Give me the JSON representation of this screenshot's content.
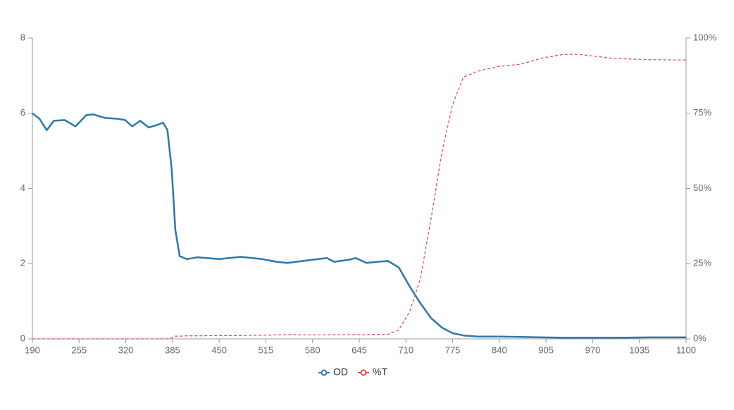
{
  "chart_data": {
    "type": "line",
    "x": [
      190,
      200,
      210,
      220,
      235,
      250,
      265,
      275,
      290,
      310,
      319,
      329,
      340,
      352,
      365,
      372,
      378,
      384,
      389,
      395,
      405,
      420,
      450,
      480,
      510,
      530,
      545,
      570,
      600,
      610,
      630,
      640,
      655,
      670,
      685,
      700,
      715,
      730,
      745,
      760,
      775,
      790,
      810,
      840,
      870,
      900,
      930,
      950,
      1000,
      1050,
      1100
    ],
    "series": [
      {
        "name": "OD",
        "color": "#2a78ae",
        "axis": "y",
        "values": [
          6.0,
          5.85,
          5.55,
          5.8,
          5.82,
          5.65,
          5.95,
          5.97,
          5.88,
          5.85,
          5.82,
          5.65,
          5.8,
          5.62,
          5.7,
          5.75,
          5.55,
          4.5,
          2.9,
          2.2,
          2.12,
          2.17,
          2.12,
          2.18,
          2.12,
          2.05,
          2.02,
          2.08,
          2.15,
          2.05,
          2.1,
          2.15,
          2.02,
          2.05,
          2.07,
          1.9,
          1.4,
          0.95,
          0.55,
          0.3,
          0.15,
          0.09,
          0.06,
          0.06,
          0.05,
          0.04,
          0.03,
          0.03,
          0.03,
          0.04,
          0.04
        ]
      },
      {
        "name": "%T",
        "color": "#d9534f",
        "axis": "y2",
        "values": [
          0,
          0,
          0,
          0,
          0,
          0,
          0,
          0,
          0,
          0,
          0,
          0,
          0,
          0,
          0,
          0,
          0,
          0.3,
          0.9,
          0.9,
          1,
          1,
          1.1,
          1.1,
          1.2,
          1.3,
          1.4,
          1.3,
          1.3,
          1.4,
          1.4,
          1.4,
          1.4,
          1.5,
          1.5,
          3,
          9,
          20,
          40,
          62,
          78,
          87,
          89,
          90.6,
          91.3,
          93.4,
          94.6,
          94.6,
          93.2,
          92.8,
          92.7
        ]
      }
    ],
    "xlim": [
      190,
      1100
    ],
    "xticks": [
      190,
      255,
      320,
      385,
      450,
      515,
      580,
      645,
      710,
      775,
      840,
      905,
      970,
      1035,
      1100
    ],
    "ylim": [
      0,
      8
    ],
    "yticks": [
      0,
      2,
      4,
      6,
      8
    ],
    "y2lim": [
      0,
      100
    ],
    "y2ticks": [
      {
        "value": 0,
        "label": "0%"
      },
      {
        "value": 25,
        "label": "25%"
      },
      {
        "value": 50,
        "label": "50%"
      },
      {
        "value": 75,
        "label": "75%"
      },
      {
        "value": 100,
        "label": "100%"
      }
    ]
  }
}
